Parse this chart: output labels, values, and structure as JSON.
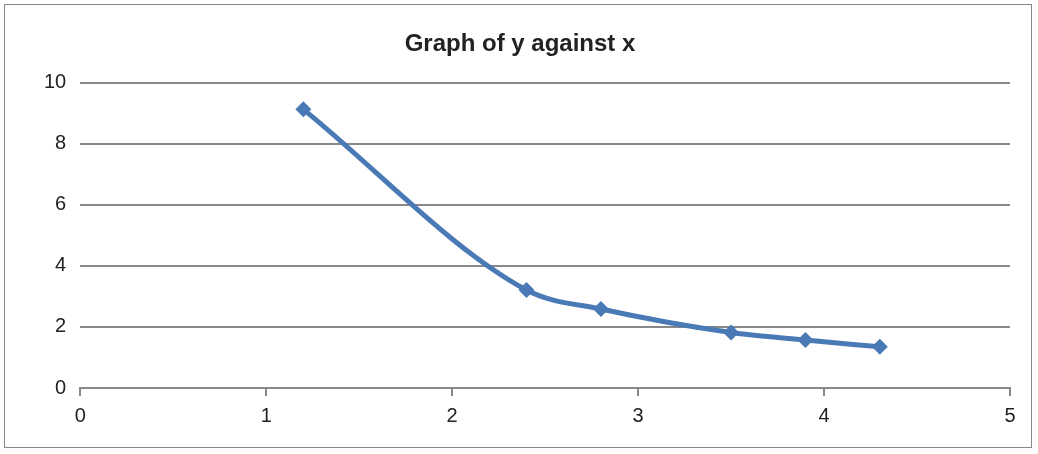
{
  "chart_data": {
    "type": "line",
    "title": "Graph of y against x",
    "x": [
      1.2,
      2.4,
      2.8,
      3.5,
      3.9,
      4.3
    ],
    "series": [
      {
        "color": "#4a7ab5",
        "values": [
          9.13,
          3.21,
          2.59,
          1.82,
          1.57,
          1.35
        ]
      }
    ],
    "xlim": [
      0,
      5
    ],
    "xticks": [
      0,
      1,
      2,
      3,
      4,
      5
    ],
    "ylim": [
      0,
      10
    ],
    "yticks": [
      0,
      2,
      4,
      6,
      8,
      10
    ],
    "grid": "y",
    "legend": false,
    "marker": "diamond",
    "line_style": "solid"
  }
}
